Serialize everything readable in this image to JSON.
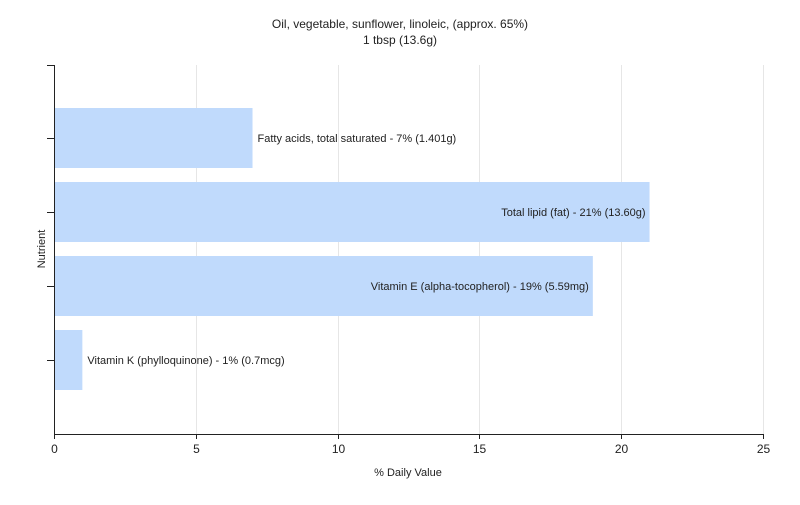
{
  "chart_data": {
    "type": "bar",
    "orientation": "horizontal",
    "title": "Oil, vegetable, sunflower, linoleic, (approx. 65%)",
    "subtitle": "1 tbsp (13.6g)",
    "xlabel": "% Daily Value",
    "ylabel": "Nutrient",
    "xlim": [
      0,
      25
    ],
    "xticks": [
      0,
      5,
      10,
      15,
      20,
      25
    ],
    "grid": true,
    "legend": "none",
    "bar_color": "#c0dafc",
    "grid_color": "#e6e6e6",
    "categories": [
      "Fatty acids, total saturated",
      "Total lipid (fat)",
      "Vitamin E (alpha-tocopherol)",
      "Vitamin K (phylloquinone)"
    ],
    "values": [
      7,
      21,
      19,
      1
    ],
    "labels": [
      "Fatty acids, total saturated - 7% (1.401g)",
      "Total lipid (fat) - 21% (13.60g)",
      "Vitamin E (alpha-tocopherol) - 19% (5.59mg)",
      "Vitamin K (phylloquinone) - 1% (0.7mcg)"
    ]
  }
}
